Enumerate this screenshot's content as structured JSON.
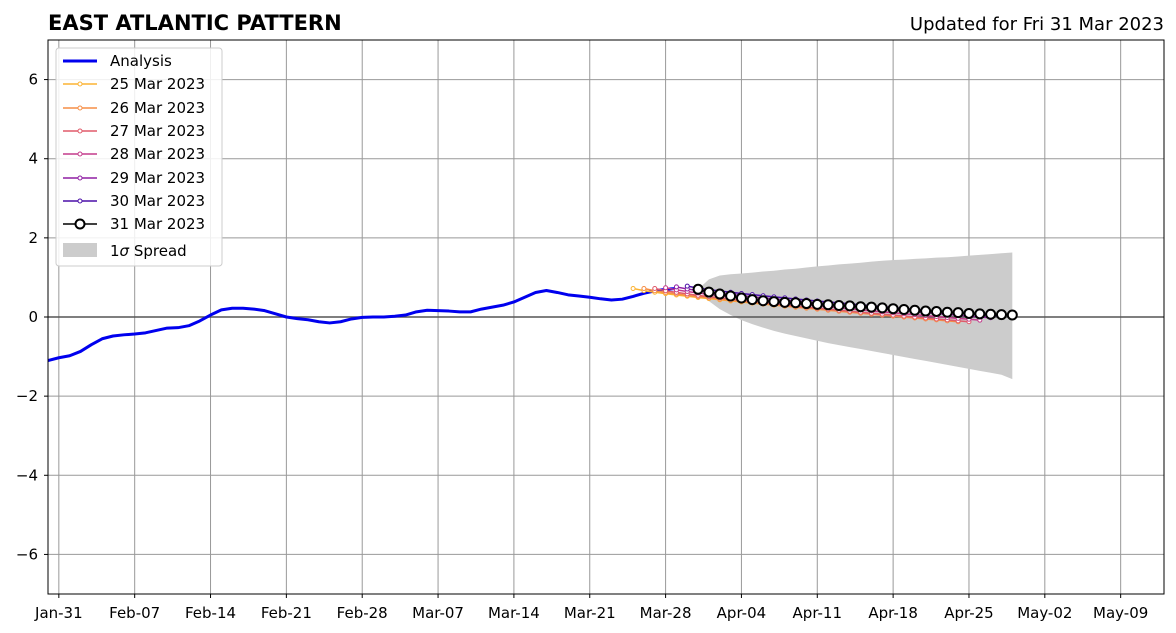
{
  "chart_data": {
    "type": "line",
    "title": "EAST ATLANTIC PATTERN",
    "subtitle": "Updated for Fri 31 Mar 2023",
    "xlabel": "",
    "ylabel": "",
    "ylim": [
      -7,
      7
    ],
    "xlim": [
      "2023-01-30",
      "2023-05-13"
    ],
    "yticks": [
      -6,
      -4,
      -2,
      0,
      2,
      4,
      6
    ],
    "ytick_labels": [
      "−6",
      "−4",
      "−2",
      "0",
      "2",
      "4",
      "6"
    ],
    "xticks": [
      "2023-01-31",
      "2023-02-07",
      "2023-02-14",
      "2023-02-21",
      "2023-02-28",
      "2023-03-07",
      "2023-03-14",
      "2023-03-21",
      "2023-03-28",
      "2023-04-04",
      "2023-04-11",
      "2023-04-18",
      "2023-04-25",
      "2023-05-02",
      "2023-05-09"
    ],
    "xtick_labels": [
      "Jan-31",
      "Feb-07",
      "Feb-14",
      "Feb-21",
      "Feb-28",
      "Mar-07",
      "Mar-14",
      "Mar-21",
      "Mar-28",
      "Apr-04",
      "Apr-11",
      "Apr-18",
      "Apr-25",
      "May-02",
      "May-09"
    ],
    "grid": true,
    "legend_position": "top-left",
    "legend_labels": {
      "analysis": "Analysis",
      "f25": "25 Mar 2023",
      "f26": "26 Mar 2023",
      "f27": "27 Mar 2023",
      "f28": "28 Mar 2023",
      "f29": "29 Mar 2023",
      "f30": "30 Mar 2023",
      "f31": "31 Mar 2023",
      "spread_prefix": "1",
      "spread_sigma": "σ",
      "spread_suffix": " Spread"
    },
    "analysis": {
      "name": "Analysis",
      "color": "#0000ee",
      "start": "2023-01-30",
      "values": [
        -1.1,
        -1.03,
        -0.98,
        -0.87,
        -0.7,
        -0.55,
        -0.48,
        -0.45,
        -0.43,
        -0.4,
        -0.34,
        -0.28,
        -0.27,
        -0.22,
        -0.1,
        0.05,
        0.18,
        0.22,
        0.22,
        0.2,
        0.16,
        0.08,
        0.0,
        -0.04,
        -0.07,
        -0.12,
        -0.15,
        -0.12,
        -0.05,
        -0.01,
        0.0,
        0.0,
        0.02,
        0.05,
        0.13,
        0.17,
        0.16,
        0.15,
        0.13,
        0.13,
        0.2,
        0.25,
        0.3,
        0.38,
        0.5,
        0.62,
        0.67,
        0.62,
        0.56,
        0.53,
        0.5,
        0.46,
        0.43,
        0.45,
        0.52,
        0.6,
        0.66,
        0.7,
        0.72
      ]
    },
    "forecasts": [
      {
        "name": "25 Mar 2023",
        "color": "#fcb333",
        "start": "2023-03-25",
        "end_date": "2023-04-23",
        "v0": 0.72,
        "v1": -0.08
      },
      {
        "name": "26 Mar 2023",
        "color": "#f68e46",
        "start": "2023-03-26",
        "end_date": "2023-04-24",
        "v0": 0.72,
        "v1": -0.12
      },
      {
        "name": "27 Mar 2023",
        "color": "#e05a6a",
        "start": "2023-03-27",
        "end_date": "2023-04-25",
        "v0": 0.72,
        "v1": -0.12
      },
      {
        "name": "28 Mar 2023",
        "color": "#c43b8c",
        "start": "2023-03-28",
        "end_date": "2023-04-26",
        "v0": 0.74,
        "v1": -0.08
      },
      {
        "name": "29 Mar 2023",
        "color": "#8f1fa3",
        "start": "2023-03-29",
        "end_date": "2023-04-27",
        "v0": 0.76,
        "v1": -0.02
      },
      {
        "name": "30 Mar 2023",
        "color": "#4a0ea8",
        "start": "2023-03-30",
        "end_date": "2023-04-28",
        "v0": 0.78,
        "v1": 0.02
      }
    ],
    "latest_forecast": {
      "name": "31 Mar 2023",
      "color": "#000000",
      "start": "2023-03-31",
      "values": [
        0.7,
        0.63,
        0.58,
        0.53,
        0.48,
        0.44,
        0.41,
        0.39,
        0.37,
        0.36,
        0.34,
        0.32,
        0.31,
        0.29,
        0.28,
        0.26,
        0.25,
        0.23,
        0.21,
        0.19,
        0.17,
        0.15,
        0.14,
        0.12,
        0.11,
        0.09,
        0.08,
        0.07,
        0.06,
        0.05
      ]
    },
    "spread": {
      "name": "1σ Spread",
      "color": "#cccccc",
      "start": "2023-03-31",
      "end_date": "2023-04-29",
      "upper": [
        0.7,
        0.95,
        1.05,
        1.08,
        1.1,
        1.12,
        1.15,
        1.17,
        1.2,
        1.22,
        1.25,
        1.28,
        1.3,
        1.33,
        1.35,
        1.37,
        1.4,
        1.42,
        1.44,
        1.45,
        1.47,
        1.48,
        1.5,
        1.51,
        1.53,
        1.55,
        1.57,
        1.59,
        1.61,
        1.63
      ],
      "lower": [
        0.7,
        0.4,
        0.2,
        0.05,
        -0.08,
        -0.18,
        -0.27,
        -0.35,
        -0.42,
        -0.48,
        -0.54,
        -0.6,
        -0.66,
        -0.71,
        -0.76,
        -0.81,
        -0.86,
        -0.91,
        -0.96,
        -1.01,
        -1.06,
        -1.11,
        -1.16,
        -1.21,
        -1.26,
        -1.31,
        -1.36,
        -1.41,
        -1.46,
        -1.57
      ]
    }
  }
}
